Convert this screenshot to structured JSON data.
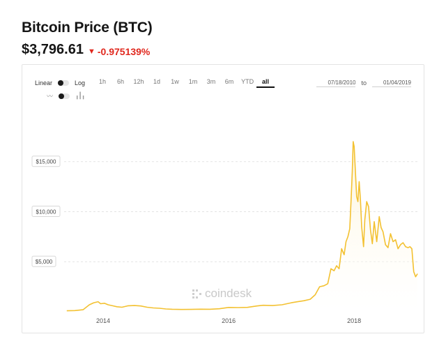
{
  "header": {
    "title": "Bitcoin Price (BTC)",
    "price": "$3,796.61",
    "change": "-0.975139%",
    "change_color": "#e0281e"
  },
  "toolbar": {
    "scale_linear": "Linear",
    "scale_log": "Log",
    "ranges": [
      "1h",
      "6h",
      "12h",
      "1d",
      "1w",
      "1m",
      "3m",
      "6m",
      "YTD",
      "all"
    ],
    "active_range": "all",
    "date_from": "07/18/2010",
    "date_to_label": "to",
    "date_to": "01/04/2019",
    "chart_type_icons": [
      "line-chart-icon",
      "bar-chart-icon"
    ]
  },
  "watermark": "coindesk",
  "chart_data": {
    "type": "area",
    "title": "",
    "xlabel": "",
    "ylabel": "",
    "line_color": "#f3c131",
    "grid": true,
    "x_ticks": [
      "2014",
      "2016",
      "2018"
    ],
    "y_ticks": [
      "$5,000",
      "$10,000",
      "$15,000"
    ],
    "xlim": [
      2013.4,
      2019.02
    ],
    "ylim": [
      0,
      17000
    ],
    "series": [
      {
        "x": [
          2013.42,
          2013.55,
          2013.68,
          2013.78,
          2013.85,
          2013.92,
          2013.96,
          2014.02,
          2014.08,
          2014.15,
          2014.22,
          2014.3,
          2014.4,
          2014.5,
          2014.6,
          2014.7,
          2014.8,
          2014.9,
          2015.0,
          2015.1,
          2015.25,
          2015.4,
          2015.55,
          2015.7,
          2015.85,
          2016.0,
          2016.15,
          2016.3,
          2016.45,
          2016.55,
          2016.7,
          2016.85,
          2017.0,
          2017.1,
          2017.2,
          2017.3,
          2017.38,
          2017.45,
          2017.52,
          2017.58,
          2017.63,
          2017.68,
          2017.72,
          2017.76,
          2017.8,
          2017.84,
          2017.87,
          2017.9,
          2017.93,
          2017.95,
          2017.97,
          2017.985,
          2018.0,
          2018.02,
          2018.04,
          2018.06,
          2018.08,
          2018.1,
          2018.12,
          2018.15,
          2018.17,
          2018.2,
          2018.23,
          2018.26,
          2018.29,
          2018.32,
          2018.36,
          2018.4,
          2018.43,
          2018.46,
          2018.5,
          2018.54,
          2018.58,
          2018.62,
          2018.66,
          2018.7,
          2018.74,
          2018.78,
          2018.82,
          2018.86,
          2018.89,
          2018.92,
          2018.95,
          2018.98,
          2019.01
        ],
        "values": [
          100,
          120,
          200,
          700,
          900,
          1000,
          800,
          850,
          700,
          600,
          500,
          450,
          600,
          620,
          580,
          450,
          380,
          350,
          280,
          250,
          230,
          240,
          260,
          250,
          300,
          430,
          420,
          440,
          580,
          650,
          620,
          700,
          900,
          1000,
          1100,
          1250,
          1700,
          2500,
          2600,
          2800,
          4300,
          4100,
          4600,
          4300,
          6300,
          5700,
          7000,
          7500,
          8300,
          11000,
          14000,
          17000,
          16500,
          14000,
          11500,
          11000,
          13000,
          11200,
          8500,
          6500,
          9200,
          11000,
          10500,
          8200,
          6800,
          9000,
          7000,
          9500,
          8400,
          8000,
          6700,
          6400,
          7800,
          7000,
          7200,
          6300,
          6700,
          6900,
          6500,
          6400,
          6500,
          6300,
          4000,
          3500,
          3800
        ]
      }
    ]
  }
}
